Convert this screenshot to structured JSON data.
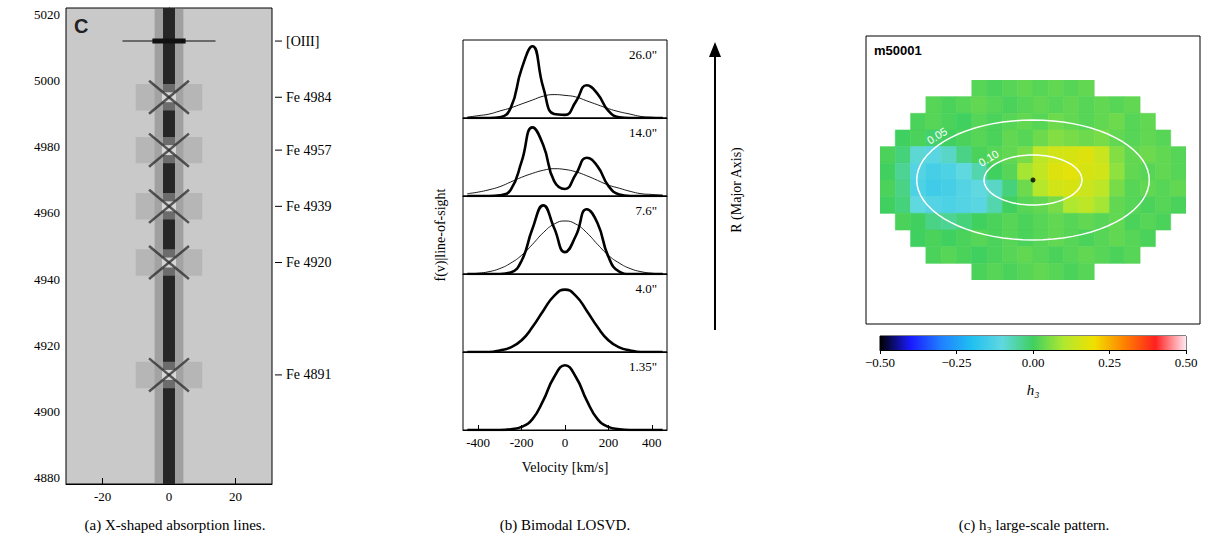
{
  "chart_data": [
    {
      "type": "image",
      "caption": "(a) X-shaped absorption lines.",
      "letter": "C",
      "xlim": [
        -31,
        31
      ],
      "xticks": [
        -20,
        0,
        20
      ],
      "ylim": [
        4878,
        5022
      ],
      "yticks": [
        4880,
        4900,
        4920,
        4940,
        4960,
        4980,
        5000,
        5020
      ],
      "slit": {
        "center": 0,
        "half_width": 1.8
      },
      "lines": [
        {
          "label": "[OIII]",
          "position": 5012,
          "type": "emission"
        },
        {
          "label": "Fe 4984",
          "position": 4995,
          "type": "absorption"
        },
        {
          "label": "Fe 4957",
          "position": 4979,
          "type": "absorption"
        },
        {
          "label": "Fe 4939",
          "position": 4962,
          "type": "absorption"
        },
        {
          "label": "Fe 4920",
          "position": 4945,
          "type": "absorption"
        },
        {
          "label": "Fe 4891",
          "position": 4911,
          "type": "absorption"
        }
      ]
    },
    {
      "type": "line",
      "caption": "(b) Bimodal LOSVD.",
      "xlabel": "Velocity [km/s]",
      "ylabel": "f(v)|line-of-sight",
      "annotation": "R (Major Axis)",
      "x": [
        -450,
        -400,
        -350,
        -300,
        -250,
        -200,
        -150,
        -100,
        -50,
        0,
        50,
        100,
        150,
        200,
        250,
        300,
        350,
        400,
        450
      ],
      "xlim": [
        -470,
        470
      ],
      "xticks": [
        -400,
        -200,
        0,
        200,
        400
      ],
      "ylim": [
        0,
        1
      ],
      "tick_labels": "x",
      "panels": [
        {
          "title": "26.0\"",
          "series": [
            {
              "values": [
                0,
                0,
                0,
                0.01,
                0.13,
                0.63,
                0.92,
                0.39,
                0.05,
                0.04,
                0.21,
                0.42,
                0.31,
                0.09,
                0.01,
                0,
                0,
                0,
                0
              ]
            },
            {
              "values": [
                0.01,
                0.03,
                0.05,
                0.09,
                0.13,
                0.18,
                0.23,
                0.28,
                0.3,
                0.29,
                0.27,
                0.22,
                0.17,
                0.12,
                0.08,
                0.05,
                0.02,
                0.01,
                0
              ]
            }
          ]
        },
        {
          "title": "14.0\"",
          "series": [
            {
              "values": [
                0,
                0,
                0,
                0.01,
                0.08,
                0.44,
                0.88,
                0.65,
                0.19,
                0.09,
                0.28,
                0.49,
                0.38,
                0.13,
                0.02,
                0,
                0,
                0,
                0
              ]
            },
            {
              "values": [
                0.03,
                0.05,
                0.08,
                0.12,
                0.18,
                0.24,
                0.29,
                0.33,
                0.35,
                0.34,
                0.31,
                0.26,
                0.2,
                0.14,
                0.1,
                0.06,
                0.03,
                0.02,
                0.01
              ]
            }
          ]
        },
        {
          "title": "7.6\"",
          "series": [
            {
              "values": [
                0,
                0,
                0,
                0,
                0.02,
                0.17,
                0.58,
                0.88,
                0.59,
                0.28,
                0.49,
                0.83,
                0.65,
                0.22,
                0.03,
                0,
                0,
                0,
                0
              ]
            },
            {
              "values": [
                0,
                0.01,
                0.03,
                0.07,
                0.14,
                0.24,
                0.38,
                0.53,
                0.64,
                0.68,
                0.64,
                0.53,
                0.38,
                0.24,
                0.14,
                0.07,
                0.03,
                0.01,
                0
              ]
            }
          ]
        },
        {
          "title": "4.0\"",
          "series": [
            {
              "values": [
                0,
                0,
                0,
                0.02,
                0.06,
                0.15,
                0.32,
                0.53,
                0.72,
                0.8,
                0.72,
                0.53,
                0.32,
                0.15,
                0.06,
                0.02,
                0,
                0,
                0
              ]
            }
          ]
        },
        {
          "title": "1.35\"",
          "series": [
            {
              "values": [
                0,
                0,
                0,
                0,
                0.01,
                0.04,
                0.14,
                0.38,
                0.68,
                0.83,
                0.68,
                0.38,
                0.14,
                0.04,
                0.01,
                0,
                0,
                0,
                0
              ]
            }
          ]
        }
      ]
    },
    {
      "type": "heatmap",
      "caption": "(c) h₃ large-scale pattern.",
      "title": "m50001",
      "xlim": [
        0,
        20
      ],
      "ylim": [
        0,
        12
      ],
      "tick_labels": false,
      "cells": [
        [
          null,
          null,
          null,
          null,
          null,
          null,
          0.02,
          0.01,
          0.02,
          0.03,
          0.02,
          0.03,
          0.02,
          0.03,
          null,
          null,
          null,
          null,
          null,
          null
        ],
        [
          null,
          null,
          null,
          0.02,
          0.01,
          0.02,
          0.03,
          0.02,
          0.01,
          0.02,
          0.03,
          0.02,
          0.03,
          0.02,
          0.03,
          0.02,
          0.03,
          null,
          null,
          null
        ],
        [
          null,
          null,
          0.01,
          0.02,
          0.01,
          0.0,
          0.02,
          0.01,
          0.02,
          0.03,
          0.02,
          0.04,
          0.03,
          0.02,
          0.03,
          0.04,
          0.02,
          0.03,
          null,
          null
        ],
        [
          null,
          0.0,
          0.01,
          -0.01,
          0.0,
          0.01,
          0.02,
          0.01,
          0.03,
          0.02,
          0.04,
          0.06,
          0.05,
          0.04,
          0.05,
          0.03,
          0.02,
          0.03,
          0.02,
          null
        ],
        [
          0.01,
          -0.02,
          -0.09,
          -0.11,
          -0.08,
          -0.03,
          0.01,
          0.02,
          0.03,
          0.05,
          0.12,
          0.15,
          0.16,
          0.17,
          0.14,
          0.06,
          0.03,
          0.04,
          0.03,
          0.02
        ],
        [
          0.0,
          -0.04,
          -0.12,
          -0.14,
          -0.13,
          -0.1,
          -0.06,
          0.0,
          0.02,
          0.09,
          0.13,
          0.17,
          0.18,
          0.16,
          0.15,
          0.07,
          0.03,
          0.02,
          0.03,
          0.02
        ],
        [
          0.01,
          -0.03,
          -0.13,
          -0.15,
          -0.14,
          -0.12,
          -0.1,
          -0.08,
          -0.02,
          0.04,
          0.11,
          0.15,
          0.16,
          0.14,
          0.12,
          0.05,
          0.02,
          0.03,
          0.02,
          0.03
        ],
        [
          0.0,
          -0.02,
          -0.1,
          -0.12,
          -0.13,
          -0.12,
          -0.11,
          -0.06,
          0.0,
          0.02,
          0.03,
          0.05,
          0.1,
          0.12,
          0.09,
          0.03,
          0.02,
          0.01,
          0.02,
          0.01
        ],
        [
          null,
          0.01,
          0.0,
          -0.03,
          -0.04,
          -0.02,
          0.0,
          0.01,
          0.02,
          0.01,
          0.02,
          0.03,
          0.02,
          0.03,
          0.02,
          0.03,
          0.01,
          0.02,
          0.01,
          null
        ],
        [
          null,
          null,
          0.0,
          0.01,
          0.0,
          0.01,
          0.02,
          0.01,
          0.02,
          0.01,
          0.02,
          0.03,
          0.02,
          0.01,
          0.02,
          0.03,
          0.02,
          0.01,
          null,
          null
        ],
        [
          null,
          null,
          null,
          0.01,
          0.02,
          0.01,
          0.0,
          0.01,
          0.02,
          0.03,
          0.02,
          0.01,
          0.02,
          0.03,
          0.02,
          0.01,
          0.02,
          null,
          null,
          null
        ],
        [
          null,
          null,
          null,
          null,
          null,
          null,
          0.01,
          0.02,
          0.01,
          0.02,
          0.03,
          0.02,
          0.01,
          0.02,
          null,
          null,
          null,
          null,
          null,
          null
        ]
      ],
      "center": [
        10,
        6
      ],
      "contours": [
        {
          "label": "0.05",
          "semi_axes": [
            7.6,
            3.6
          ]
        },
        {
          "label": "0.10",
          "semi_axes": [
            3.2,
            1.5
          ]
        }
      ],
      "colorbar": {
        "label": "h₃",
        "range": [
          -0.5,
          0.5
        ],
        "ticks": [
          {
            "value": -0.5,
            "label": "−0.50"
          },
          {
            "value": -0.25,
            "label": "−0.25"
          },
          {
            "value": 0,
            "label": "0.00"
          },
          {
            "value": 0.25,
            "label": "0.25"
          },
          {
            "value": 0.5,
            "label": "0.50"
          }
        ],
        "colors": [
          "#000000",
          "#1a1aff",
          "#2080ff",
          "#20c0f0",
          "#60d8e0",
          "#40d060",
          "#b0e830",
          "#f0e000",
          "#ff8000",
          "#ff2020",
          "#ffe8f0"
        ]
      }
    }
  ]
}
